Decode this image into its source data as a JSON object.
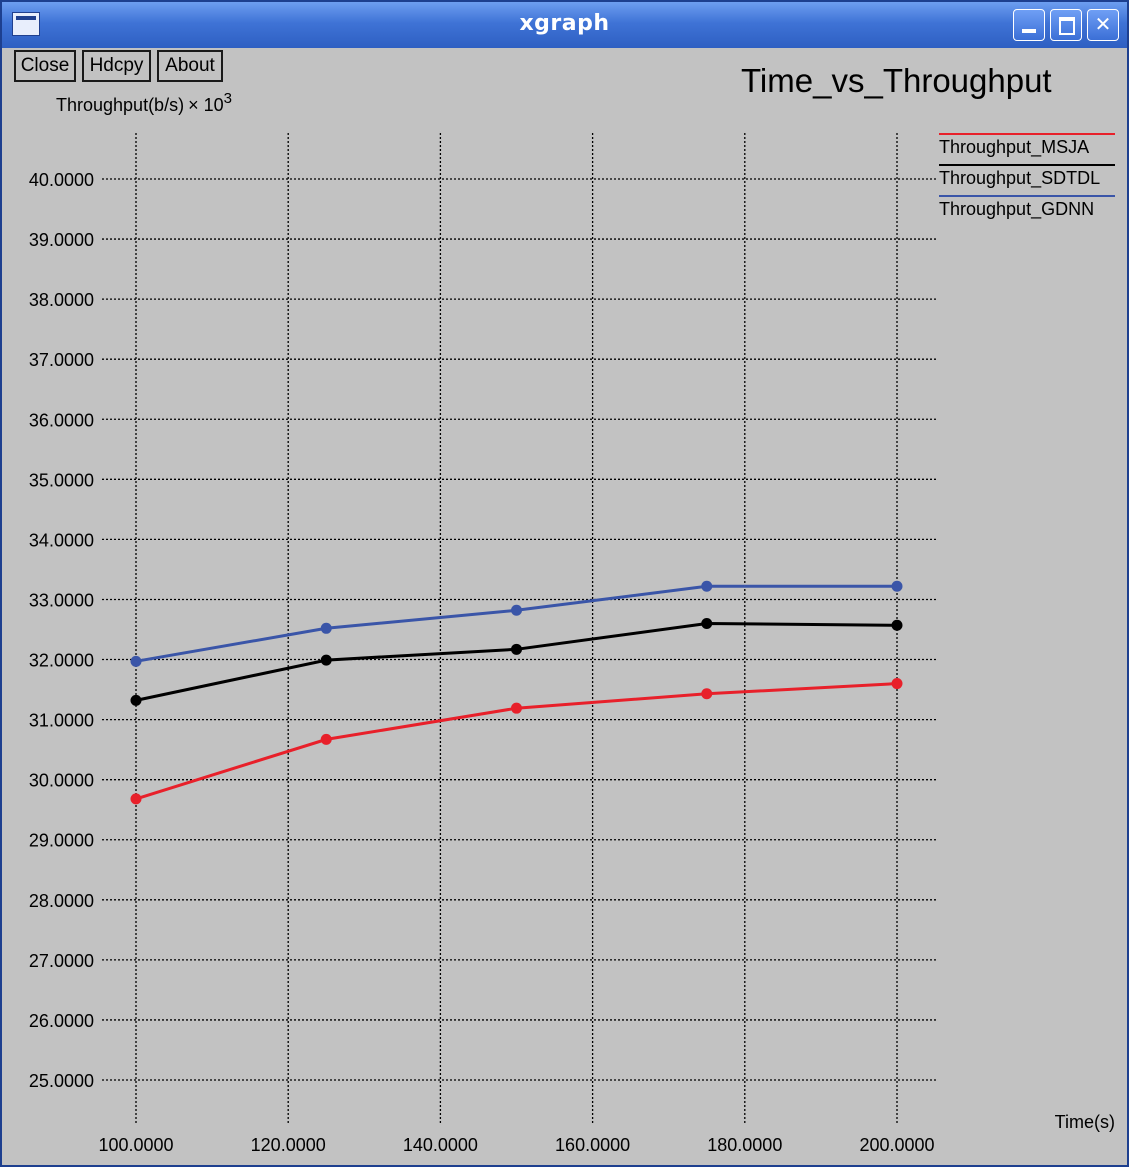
{
  "window": {
    "title": "xgraph",
    "buttons": {
      "close": "Close",
      "hardcopy": "Hdcpy",
      "about": "About"
    }
  },
  "colors": {
    "red": "#e8202a",
    "black": "#000000",
    "blue": "#3a55a8",
    "grid": "#000000",
    "background": "#c2c2c2"
  },
  "chart_data": {
    "type": "line",
    "title": "Time_vs_Throughput",
    "ylabel": "Throughput(b/s)",
    "ylabel_multiplier": "× 10",
    "ylabel_exponent": "3",
    "xlabel": "Time(s)",
    "xlim": [
      100,
      200
    ],
    "ylim": [
      25,
      40
    ],
    "x_ticks": [
      100,
      120,
      140,
      160,
      180,
      200
    ],
    "x_tick_labels": [
      "100.0000",
      "120.0000",
      "140.0000",
      "160.0000",
      "180.0000",
      "200.0000"
    ],
    "y_ticks": [
      25,
      26,
      27,
      28,
      29,
      30,
      31,
      32,
      33,
      34,
      35,
      36,
      37,
      38,
      39,
      40
    ],
    "y_tick_labels": [
      "25.0000",
      "26.0000",
      "27.0000",
      "28.0000",
      "29.0000",
      "30.0000",
      "31.0000",
      "32.0000",
      "33.0000",
      "34.0000",
      "35.0000",
      "36.0000",
      "37.0000",
      "38.0000",
      "39.0000",
      "40.0000"
    ],
    "grid": true,
    "legend_position": "top-right",
    "series": [
      {
        "name": "Throughput_MSJA",
        "color": "#e8202a",
        "x": [
          100,
          125,
          150,
          175,
          200
        ],
        "y": [
          29.68,
          30.67,
          31.19,
          31.43,
          31.6
        ]
      },
      {
        "name": "Throughput_SDTDL",
        "color": "#000000",
        "x": [
          100,
          125,
          150,
          175,
          200
        ],
        "y": [
          31.32,
          31.99,
          32.17,
          32.6,
          32.57
        ]
      },
      {
        "name": "Throughput_GDNN",
        "color": "#3a55a8",
        "x": [
          100,
          125,
          150,
          175,
          200
        ],
        "y": [
          31.97,
          32.52,
          32.82,
          33.22,
          33.22
        ]
      }
    ]
  }
}
